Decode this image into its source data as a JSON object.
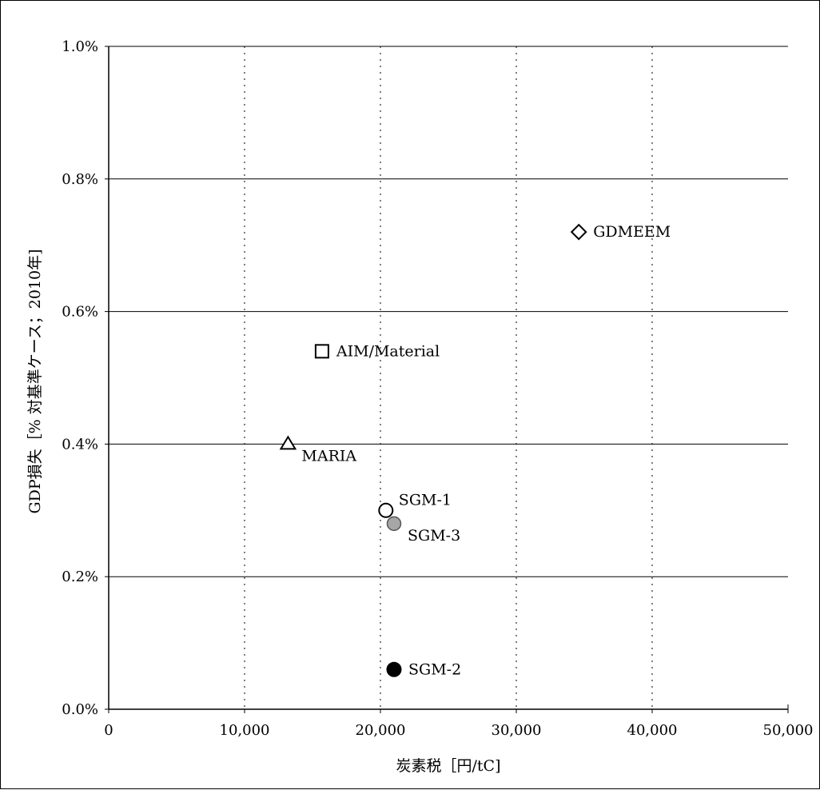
{
  "chart_data": {
    "type": "scatter",
    "xlabel": "炭素税［円/tC]",
    "ylabel": "GDP損失［% 対基準ケース；2010年]",
    "xlim": [
      0,
      50000
    ],
    "ylim": [
      0.0,
      1.0
    ],
    "x_ticks": [
      0,
      10000,
      20000,
      30000,
      40000,
      50000
    ],
    "x_tick_labels": [
      "0",
      "10,000",
      "20,000",
      "30,000",
      "40,000",
      "50,000"
    ],
    "y_ticks": [
      0.0,
      0.2,
      0.4,
      0.6,
      0.8,
      1.0
    ],
    "y_tick_labels": [
      "0.0%",
      "0.2%",
      "0.4%",
      "0.6%",
      "0.8%",
      "1.0%"
    ],
    "grid": {
      "horizontal": "solid",
      "vertical": "dotted"
    },
    "legend": "none",
    "points": [
      {
        "name": "GDMEEM",
        "x": 34600,
        "y": 0.72,
        "marker": "diamond-open",
        "label_side": "right"
      },
      {
        "name": "AIM/Material",
        "x": 15700,
        "y": 0.54,
        "marker": "square-open",
        "label_side": "right"
      },
      {
        "name": "MARIA",
        "x": 13200,
        "y": 0.4,
        "marker": "triangle-open",
        "label_side": "below-right"
      },
      {
        "name": "SGM-1",
        "x": 20400,
        "y": 0.3,
        "marker": "circle-open",
        "label_side": "upper-right"
      },
      {
        "name": "SGM-3",
        "x": 21000,
        "y": 0.28,
        "marker": "circle-gray",
        "label_side": "below-right"
      },
      {
        "name": "SGM-2",
        "x": 21000,
        "y": 0.06,
        "marker": "circle-filled",
        "label_side": "right"
      }
    ],
    "colors": {
      "marker_stroke": "#000000",
      "gray_fill": "#a6a6a6",
      "filled": "#000000",
      "open": "#ffffff",
      "grid": "#000000"
    }
  }
}
